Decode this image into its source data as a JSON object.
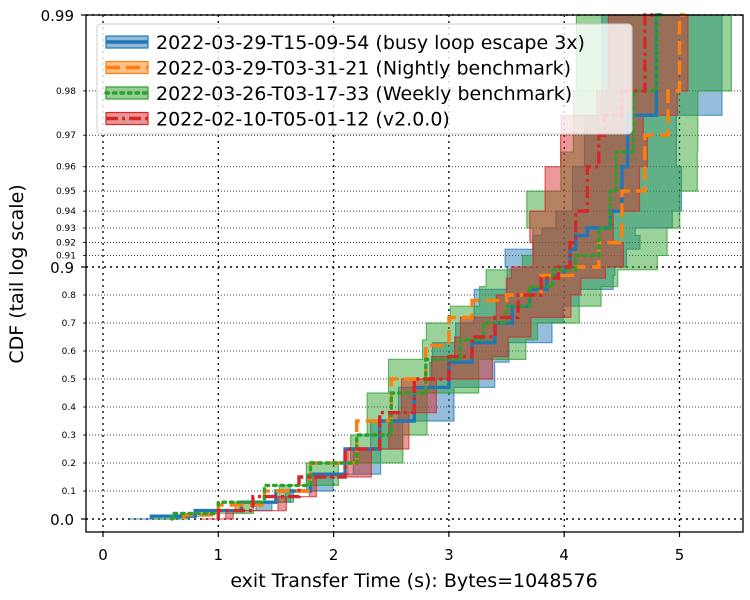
{
  "chart_data": {
    "type": "line",
    "xlabel": "exit Transfer Time (s): Bytes=1048576",
    "ylabel": "CDF (tail log scale)",
    "xlim": [
      -0.15,
      5.55
    ],
    "x_ticks": [
      "0",
      "1",
      "2",
      "3",
      "4",
      "5"
    ],
    "y_scale": "tail-log (linear 0–0.9, log-tail 0.9–0.99)",
    "y_ticks_major": [
      "0.0",
      "0.9",
      "0.99"
    ],
    "y_ticks_minor": [
      "0.1",
      "0.2",
      "0.3",
      "0.4",
      "0.5",
      "0.6",
      "0.7",
      "0.8",
      "0.91",
      "0.92",
      "0.93",
      "0.94",
      "0.95",
      "0.96",
      "0.97",
      "0.98"
    ],
    "grid": true,
    "legend_position": "top-left",
    "series": [
      {
        "name": "2022-03-29-T15-09-54 (busy loop escape 3x)",
        "color": "#1f77b4",
        "style": "solid",
        "points": [
          [
            0.42,
            0.0
          ],
          [
            0.8,
            0.01
          ],
          [
            1.2,
            0.03
          ],
          [
            1.5,
            0.06
          ],
          [
            1.8,
            0.1
          ],
          [
            2.1,
            0.16
          ],
          [
            2.4,
            0.25
          ],
          [
            2.7,
            0.35
          ],
          [
            3.0,
            0.47
          ],
          [
            3.2,
            0.56
          ],
          [
            3.4,
            0.63
          ],
          [
            3.55,
            0.7
          ],
          [
            3.7,
            0.76
          ],
          [
            3.85,
            0.82
          ],
          [
            4.0,
            0.87
          ],
          [
            4.05,
            0.9
          ],
          [
            4.1,
            0.915
          ],
          [
            4.2,
            0.925
          ],
          [
            4.4,
            0.93
          ],
          [
            4.5,
            0.94
          ],
          [
            4.55,
            0.96
          ],
          [
            4.8,
            0.975
          ],
          [
            4.85,
            0.99
          ]
        ]
      },
      {
        "name": "2022-03-29-T03-31-21 (Nightly benchmark)",
        "color": "#ff7f0e",
        "style": "dashed",
        "points": [
          [
            0.7,
            0.0
          ],
          [
            1.0,
            0.015
          ],
          [
            1.4,
            0.05
          ],
          [
            1.8,
            0.1
          ],
          [
            2.2,
            0.2
          ],
          [
            2.5,
            0.35
          ],
          [
            2.8,
            0.5
          ],
          [
            3.0,
            0.62
          ],
          [
            3.2,
            0.72
          ],
          [
            3.5,
            0.78
          ],
          [
            3.8,
            0.8
          ],
          [
            4.1,
            0.87
          ],
          [
            4.3,
            0.9
          ],
          [
            4.5,
            0.92
          ],
          [
            4.7,
            0.95
          ],
          [
            4.9,
            0.97
          ],
          [
            5.0,
            0.98
          ],
          [
            5.05,
            0.99
          ]
        ]
      },
      {
        "name": "2022-03-26-T03-17-33 (Weekly benchmark)",
        "color": "#2ca02c",
        "style": "dotted",
        "points": [
          [
            0.6,
            0.0
          ],
          [
            1.0,
            0.02
          ],
          [
            1.4,
            0.06
          ],
          [
            1.8,
            0.12
          ],
          [
            2.2,
            0.2
          ],
          [
            2.5,
            0.3
          ],
          [
            2.8,
            0.45
          ],
          [
            3.1,
            0.57
          ],
          [
            3.3,
            0.64
          ],
          [
            3.5,
            0.7
          ],
          [
            3.7,
            0.76
          ],
          [
            3.9,
            0.83
          ],
          [
            4.1,
            0.89
          ],
          [
            4.3,
            0.91
          ],
          [
            4.4,
            0.93
          ],
          [
            4.45,
            0.95
          ],
          [
            4.6,
            0.965
          ],
          [
            4.8,
            0.98
          ],
          [
            4.85,
            0.99
          ]
        ]
      },
      {
        "name": "2022-02-10-T05-01-12 (v2.0.0)",
        "color": "#d62728",
        "style": "dashdot",
        "points": [
          [
            1.0,
            0.0
          ],
          [
            1.3,
            0.03
          ],
          [
            1.7,
            0.08
          ],
          [
            2.1,
            0.15
          ],
          [
            2.4,
            0.25
          ],
          [
            2.7,
            0.38
          ],
          [
            3.0,
            0.5
          ],
          [
            3.2,
            0.58
          ],
          [
            3.4,
            0.65
          ],
          [
            3.6,
            0.72
          ],
          [
            3.8,
            0.8
          ],
          [
            3.95,
            0.86
          ],
          [
            4.05,
            0.9
          ],
          [
            4.1,
            0.92
          ],
          [
            4.2,
            0.94
          ],
          [
            4.3,
            0.96
          ],
          [
            4.35,
            0.97
          ],
          [
            4.5,
            0.975
          ],
          [
            4.7,
            0.98
          ],
          [
            4.8,
            0.99
          ]
        ]
      }
    ]
  }
}
